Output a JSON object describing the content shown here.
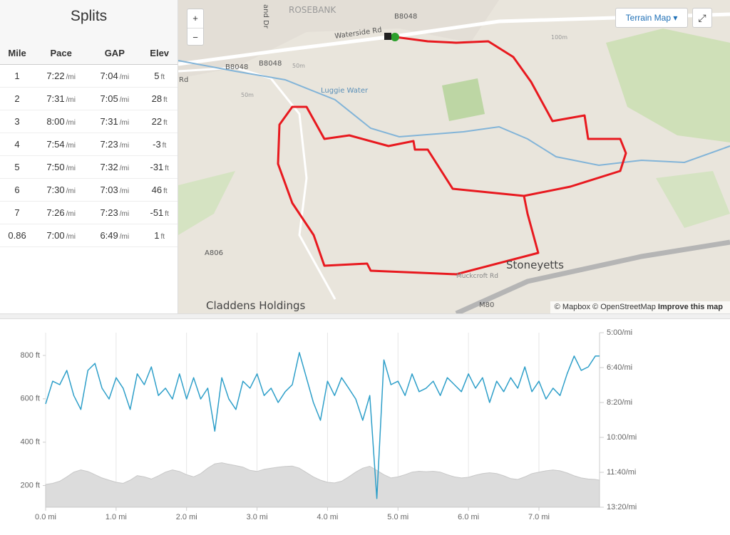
{
  "splits": {
    "title": "Splits",
    "headers": [
      "Mile",
      "Pace",
      "GAP",
      "Elev"
    ],
    "rows": [
      [
        [
          "1"
        ],
        [
          "7:22",
          "/mi"
        ],
        [
          "7:04",
          "/mi"
        ],
        [
          "5",
          "ft"
        ]
      ],
      [
        [
          "2"
        ],
        [
          "7:31",
          "/mi"
        ],
        [
          "7:05",
          "/mi"
        ],
        [
          "28",
          "ft"
        ]
      ],
      [
        [
          "3"
        ],
        [
          "8:00",
          "/mi"
        ],
        [
          "7:31",
          "/mi"
        ],
        [
          "22",
          "ft"
        ]
      ],
      [
        [
          "4"
        ],
        [
          "7:54",
          "/mi"
        ],
        [
          "7:23",
          "/mi"
        ],
        [
          "-3",
          "ft"
        ]
      ],
      [
        [
          "5"
        ],
        [
          "7:50",
          "/mi"
        ],
        [
          "7:32",
          "/mi"
        ],
        [
          "-31",
          "ft"
        ]
      ],
      [
        [
          "6"
        ],
        [
          "7:30",
          "/mi"
        ],
        [
          "7:03",
          "/mi"
        ],
        [
          "46",
          "ft"
        ]
      ],
      [
        [
          "7"
        ],
        [
          "7:26",
          "/mi"
        ],
        [
          "7:23",
          "/mi"
        ],
        [
          "-51",
          "ft"
        ]
      ],
      [
        [
          "0.86"
        ],
        [
          "7:00",
          "/mi"
        ],
        [
          "6:49",
          "/mi"
        ],
        [
          "1",
          "ft"
        ]
      ]
    ]
  },
  "map": {
    "view_option": "Terrain Map",
    "zoom_in": "+",
    "zoom_out": "−",
    "labels": [
      "ROSEBANK",
      "Waterside Rd",
      "B8048",
      "B8048",
      "B8048",
      "Luggie Water",
      "50m",
      "50m",
      "100m",
      "Stoneyetts",
      "Claddens Holdings",
      "A806",
      "M80",
      "Rd",
      "and Dr",
      "Muckcroft Rd"
    ],
    "attribution": [
      "© Mapbox",
      "© OpenStreetMap",
      "Improve this map"
    ]
  },
  "chart_data": {
    "type": "line",
    "x": [
      0,
      0.1,
      0.2,
      0.3,
      0.4,
      0.5,
      0.6,
      0.7,
      0.8,
      0.9,
      1,
      1.1,
      1.2,
      1.3,
      1.4,
      1.5,
      1.6,
      1.7,
      1.8,
      1.9,
      2,
      2.1,
      2.2,
      2.3,
      2.4,
      2.5,
      2.6,
      2.7,
      2.8,
      2.9,
      3,
      3.1,
      3.2,
      3.3,
      3.4,
      3.5,
      3.6,
      3.7,
      3.8,
      3.9,
      4,
      4.1,
      4.2,
      4.3,
      4.4,
      4.5,
      4.6,
      4.7,
      4.8,
      4.9,
      5,
      5.1,
      5.2,
      5.3,
      5.4,
      5.5,
      5.6,
      5.7,
      5.8,
      5.9,
      6,
      6.1,
      6.2,
      6.3,
      6.4,
      6.5,
      6.6,
      6.7,
      6.8,
      6.9,
      7,
      7.1,
      7.2,
      7.3,
      7.4,
      7.5,
      7.6,
      7.7,
      7.8,
      7.86
    ],
    "series": [
      {
        "color": "#2e9fc9",
        "axis": "y2",
        "values": [
          504,
          439,
          449,
          408,
          480,
          520,
          408,
          388,
          459,
          490,
          429,
          459,
          520,
          418,
          449,
          398,
          480,
          459,
          490,
          418,
          490,
          429,
          490,
          459,
          582,
          429,
          490,
          520,
          439,
          459,
          418,
          480,
          459,
          500,
          469,
          449,
          357,
          429,
          500,
          551,
          439,
          480,
          429,
          459,
          490,
          551,
          480,
          775,
          378,
          449,
          439,
          480,
          418,
          469,
          459,
          439,
          480,
          429,
          449,
          469,
          418,
          459,
          429,
          500,
          439,
          469,
          429,
          459,
          398,
          469,
          439,
          490,
          459,
          480,
          418,
          367,
          408,
          398,
          367,
          367
        ]
      },
      {
        "color": "#dcdcdc",
        "fill": true,
        "values": [
          205,
          210,
          220,
          240,
          262,
          272,
          265,
          250,
          235,
          225,
          215,
          210,
          225,
          246,
          240,
          230,
          245,
          262,
          272,
          265,
          250,
          240,
          255,
          280,
          300,
          305,
          298,
          292,
          285,
          270,
          265,
          275,
          280,
          285,
          288,
          290,
          280,
          260,
          240,
          225,
          215,
          212,
          220,
          240,
          262,
          280,
          289,
          270,
          250,
          235,
          240,
          250,
          262,
          266,
          264,
          266,
          262,
          250,
          240,
          235,
          238,
          248,
          255,
          259,
          255,
          245,
          232,
          228,
          240,
          255,
          262,
          268,
          272,
          268,
          258,
          245,
          235,
          230,
          228,
          225
        ]
      }
    ],
    "xlim": [
      0,
      7.86
    ],
    "xticks": [
      {
        "value": 0,
        "label": "0.0 mi"
      },
      {
        "value": 1,
        "label": "1.0 mi"
      },
      {
        "value": 2,
        "label": "2.0 mi"
      },
      {
        "value": 3,
        "label": "3.0 mi"
      },
      {
        "value": 4,
        "label": "4.0 mi"
      },
      {
        "value": 5,
        "label": "5.0 mi"
      },
      {
        "value": 6,
        "label": "6.0 mi"
      },
      {
        "value": 7,
        "label": "7.0 mi"
      }
    ],
    "ylim": [
      100,
      905
    ],
    "yticks": [
      {
        "value": 200,
        "label": "200 ft"
      },
      {
        "value": 400,
        "label": "400 ft"
      },
      {
        "value": 600,
        "label": "600 ft"
      },
      {
        "value": 800,
        "label": "800 ft"
      }
    ],
    "y2lim": [
      800,
      300
    ],
    "y2ticks": [
      {
        "value": 300,
        "label": "5:00/mi"
      },
      {
        "value": 400,
        "label": "6:40/mi"
      },
      {
        "value": 500,
        "label": "8:20/mi"
      },
      {
        "value": 600,
        "label": "10:00/mi"
      },
      {
        "value": 700,
        "label": "11:40/mi"
      },
      {
        "value": 800,
        "label": "13:20/mi"
      }
    ],
    "grid": true
  }
}
